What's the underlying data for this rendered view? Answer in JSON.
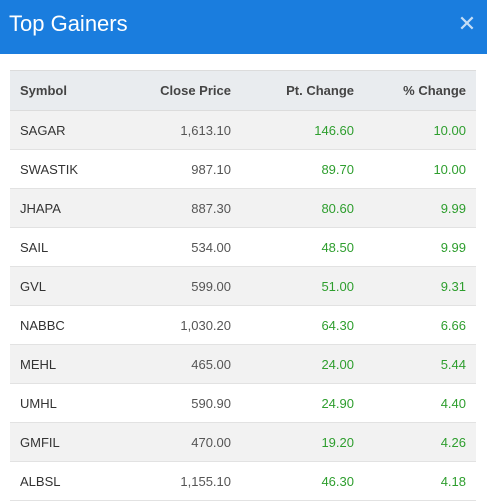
{
  "dialog": {
    "title": "Top Gainers",
    "close_glyph": "✕"
  },
  "colors": {
    "header_bg": "#1a7dde",
    "positive": "#2e9e2e"
  },
  "table": {
    "columns": [
      "Symbol",
      "Close Price",
      "Pt. Change",
      "% Change"
    ],
    "rows": [
      {
        "symbol": "SAGAR",
        "close": "1,613.10",
        "pt": "146.60",
        "pct": "10.00"
      },
      {
        "symbol": "SWASTIK",
        "close": "987.10",
        "pt": "89.70",
        "pct": "10.00"
      },
      {
        "symbol": "JHAPA",
        "close": "887.30",
        "pt": "80.60",
        "pct": "9.99"
      },
      {
        "symbol": "SAIL",
        "close": "534.00",
        "pt": "48.50",
        "pct": "9.99"
      },
      {
        "symbol": "GVL",
        "close": "599.00",
        "pt": "51.00",
        "pct": "9.31"
      },
      {
        "symbol": "NABBC",
        "close": "1,030.20",
        "pt": "64.30",
        "pct": "6.66"
      },
      {
        "symbol": "MEHL",
        "close": "465.00",
        "pt": "24.00",
        "pct": "5.44"
      },
      {
        "symbol": "UMHL",
        "close": "590.90",
        "pt": "24.90",
        "pct": "4.40"
      },
      {
        "symbol": "GMFIL",
        "close": "470.00",
        "pt": "19.20",
        "pct": "4.26"
      },
      {
        "symbol": "ALBSL",
        "close": "1,155.10",
        "pt": "46.30",
        "pct": "4.18"
      }
    ]
  }
}
